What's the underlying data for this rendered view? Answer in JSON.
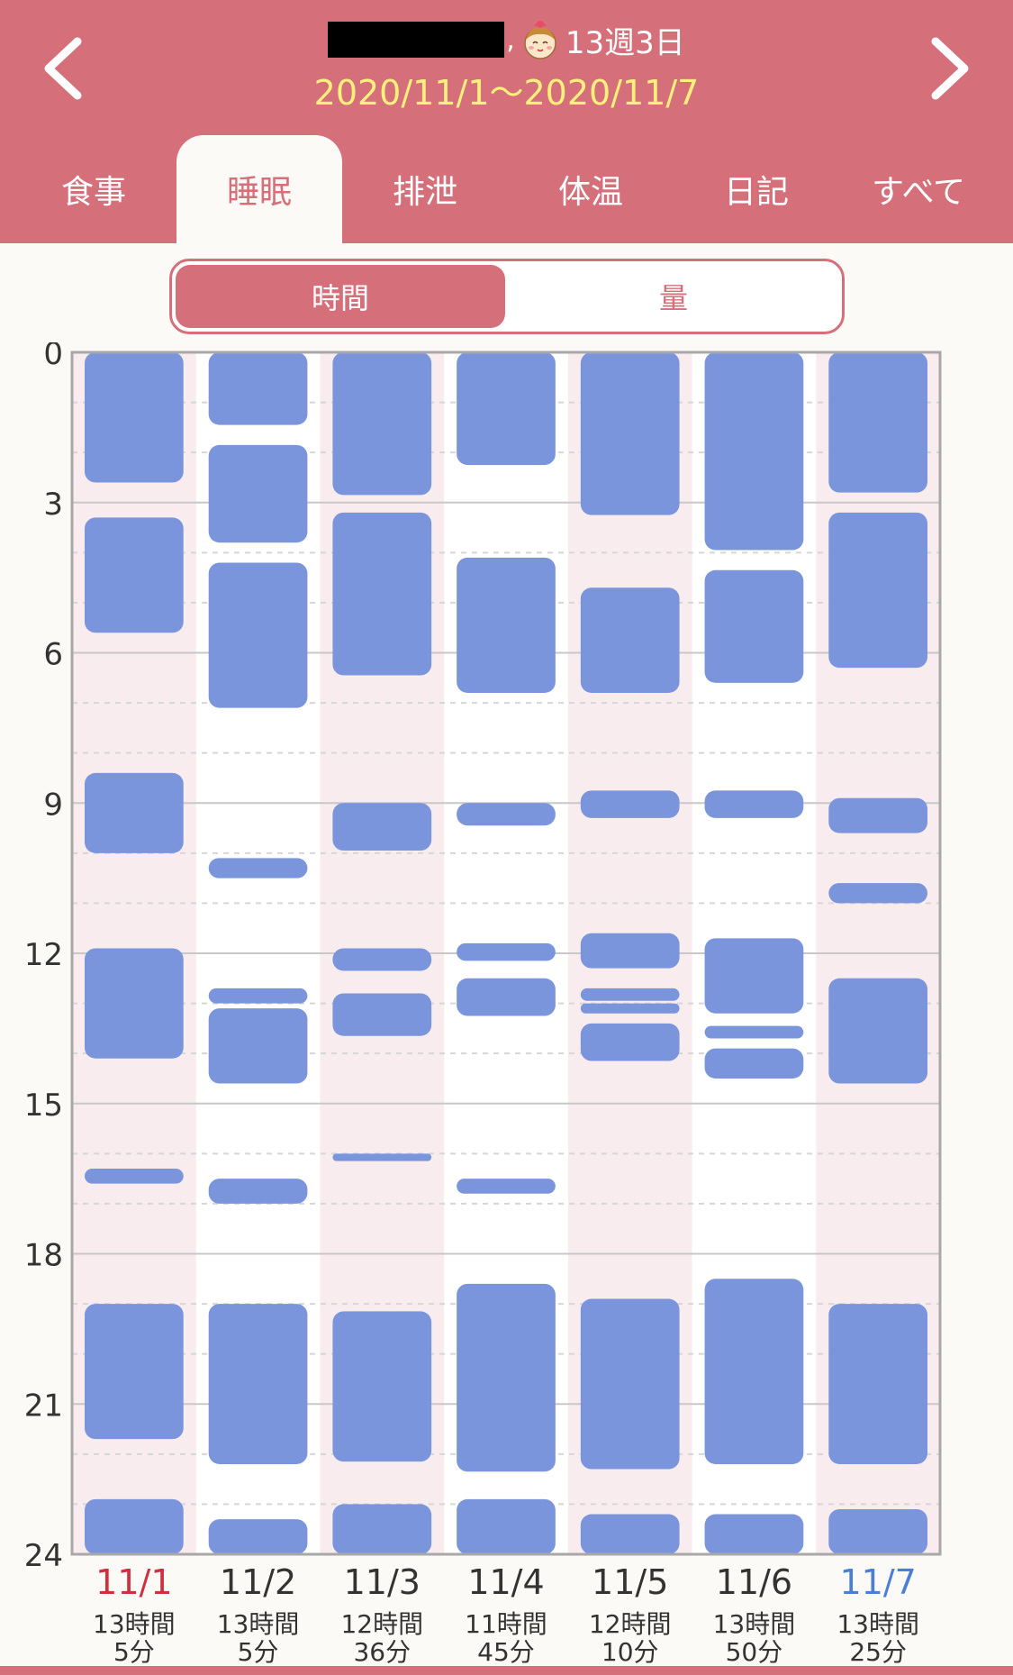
{
  "header": {
    "age_label": "13週3日",
    "name_suffix": ",",
    "date_range": "2020/11/1〜2020/11/7"
  },
  "tabs": [
    {
      "label": "食事",
      "active": false
    },
    {
      "label": "睡眠",
      "active": true
    },
    {
      "label": "排泄",
      "active": false
    },
    {
      "label": "体温",
      "active": false
    },
    {
      "label": "日記",
      "active": false
    },
    {
      "label": "すべて",
      "active": false
    }
  ],
  "view_toggle": {
    "time_label": "時間",
    "amount_label": "量",
    "selected": "time"
  },
  "colors": {
    "header": "#d5707b",
    "date_text": "#fdf07d",
    "sleep_block": "#7b95dc",
    "column_shade": "#f8ecef",
    "sunday": "#d0303e",
    "saturday": "#4a7fd8"
  },
  "chart_data": {
    "type": "bar",
    "y_range": [
      0,
      24
    ],
    "y_ticks": [
      "0",
      "3",
      "6",
      "9",
      "12",
      "15",
      "18",
      "21",
      "24"
    ],
    "days": [
      {
        "date": "11/1",
        "total_line1": "13時間",
        "total_line2": "5分",
        "weekday": "sun",
        "sessions": [
          [
            0,
            2.6
          ],
          [
            3.3,
            5.6
          ],
          [
            8.4,
            10.0
          ],
          [
            11.9,
            14.1
          ],
          [
            16.3,
            16.6
          ],
          [
            19.0,
            21.7
          ],
          [
            22.9,
            24
          ]
        ]
      },
      {
        "date": "11/2",
        "total_line1": "13時間",
        "total_line2": "5分",
        "weekday": "mon",
        "sessions": [
          [
            0,
            1.45
          ],
          [
            1.85,
            3.8
          ],
          [
            4.2,
            7.1
          ],
          [
            10.1,
            10.5
          ],
          [
            12.7,
            13.0
          ],
          [
            13.1,
            14.6
          ],
          [
            16.5,
            17.0
          ],
          [
            19.0,
            22.2
          ],
          [
            23.3,
            24
          ]
        ]
      },
      {
        "date": "11/3",
        "total_line1": "12時間",
        "total_line2": "36分",
        "weekday": "tue",
        "sessions": [
          [
            0,
            2.85
          ],
          [
            3.2,
            6.45
          ],
          [
            9.0,
            9.95
          ],
          [
            11.9,
            12.35
          ],
          [
            12.8,
            13.65
          ],
          [
            16.0,
            16.15
          ],
          [
            19.15,
            22.15
          ],
          [
            23.0,
            24
          ]
        ]
      },
      {
        "date": "11/4",
        "total_line1": "11時間",
        "total_line2": "45分",
        "weekday": "wed",
        "sessions": [
          [
            0,
            2.25
          ],
          [
            4.1,
            6.8
          ],
          [
            9.0,
            9.45
          ],
          [
            11.8,
            12.15
          ],
          [
            12.5,
            13.25
          ],
          [
            16.5,
            16.8
          ],
          [
            18.6,
            22.35
          ],
          [
            22.9,
            24
          ]
        ]
      },
      {
        "date": "11/5",
        "total_line1": "12時間",
        "total_line2": "10分",
        "weekday": "thu",
        "sessions": [
          [
            0,
            3.25
          ],
          [
            4.7,
            6.8
          ],
          [
            8.75,
            9.3
          ],
          [
            11.6,
            12.3
          ],
          [
            12.7,
            12.95
          ],
          [
            13.0,
            13.2
          ],
          [
            13.4,
            14.15
          ],
          [
            18.9,
            22.3
          ],
          [
            23.2,
            24
          ]
        ]
      },
      {
        "date": "11/6",
        "total_line1": "13時間",
        "total_line2": "50分",
        "weekday": "fri",
        "sessions": [
          [
            0,
            3.95
          ],
          [
            4.35,
            6.6
          ],
          [
            8.75,
            9.3
          ],
          [
            11.7,
            13.2
          ],
          [
            13.45,
            13.7
          ],
          [
            13.9,
            14.5
          ],
          [
            18.5,
            22.2
          ],
          [
            23.2,
            24
          ]
        ]
      },
      {
        "date": "11/7",
        "total_line1": "13時間",
        "total_line2": "25分",
        "weekday": "sat",
        "sessions": [
          [
            0,
            2.8
          ],
          [
            3.2,
            6.3
          ],
          [
            8.9,
            9.6
          ],
          [
            10.6,
            11.0
          ],
          [
            12.5,
            14.6
          ],
          [
            19.0,
            22.2
          ],
          [
            23.1,
            24
          ]
        ]
      }
    ]
  }
}
